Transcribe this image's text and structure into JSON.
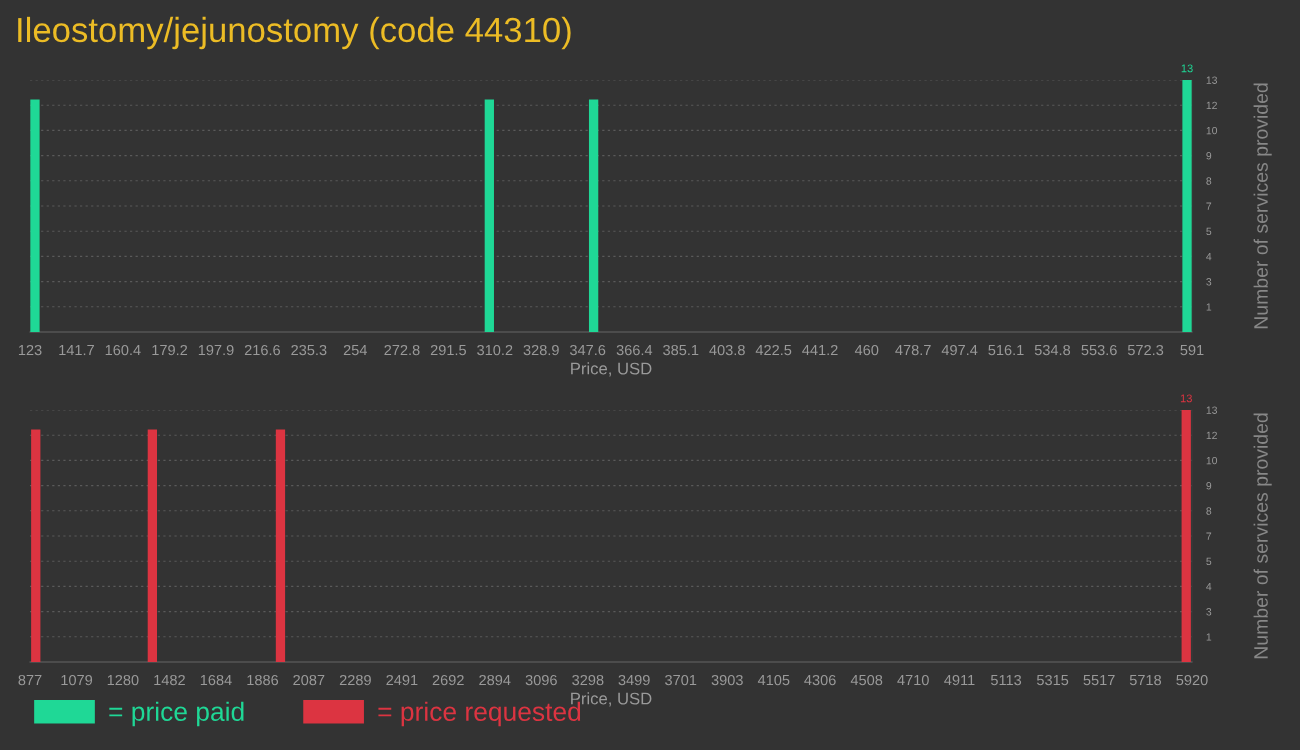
{
  "chart_data": [
    {
      "type": "bar",
      "title": "Ileostomy/jejunostomy (code 44310)",
      "xlabel": "Price, USD",
      "ylabel": "Number of services provided",
      "x": [
        125,
        308,
        350,
        589
      ],
      "series": [
        {
          "name": "= price paid",
          "color": "#1fd896",
          "values": [
            12,
            12,
            12,
            13
          ],
          "value_labels": [
            null,
            null,
            null,
            "13"
          ]
        }
      ],
      "xlim": [
        123,
        591
      ],
      "xticks": [
        123,
        141.7,
        160.4,
        179.2,
        197.9,
        216.6,
        235.3,
        254,
        272.8,
        291.5,
        310.2,
        328.9,
        347.6,
        366.4,
        385.1,
        403.8,
        422.5,
        441.2,
        460,
        478.7,
        497.4,
        516.1,
        534.8,
        553.6,
        572.3,
        591
      ],
      "ylim": [
        0,
        13
      ],
      "yticks": [
        {
          "value": 1.3,
          "label": "1"
        },
        {
          "value": 2.6,
          "label": "3"
        },
        {
          "value": 3.9,
          "label": "4"
        },
        {
          "value": 5.2,
          "label": "5"
        },
        {
          "value": 6.5,
          "label": "7"
        },
        {
          "value": 7.8,
          "label": "8"
        },
        {
          "value": 9.1,
          "label": "9"
        },
        {
          "value": 10.4,
          "label": "10"
        },
        {
          "value": 11.7,
          "label": "12"
        },
        13
      ],
      "grid": "y",
      "legend": "bottom left"
    },
    {
      "type": "bar",
      "xlabel": "Price, USD",
      "ylabel": "Number of services provided",
      "x": [
        902,
        1408,
        1964,
        5895
      ],
      "series": [
        {
          "name": "= price requested",
          "color": "#dc3441",
          "values": [
            12,
            12,
            12,
            13
          ],
          "value_labels": [
            null,
            null,
            null,
            "13"
          ]
        }
      ],
      "xlim": [
        877,
        5920
      ],
      "xticks": [
        877,
        1079,
        1280,
        1482,
        1684,
        1886,
        2087,
        2289,
        2491,
        2692,
        2894,
        3096,
        3298,
        3499,
        3701,
        3903,
        4105,
        4306,
        4508,
        4710,
        4911,
        5113,
        5315,
        5517,
        5718,
        5920
      ],
      "ylim": [
        0,
        13
      ],
      "yticks": [
        {
          "value": 1.3,
          "label": "1"
        },
        {
          "value": 2.6,
          "label": "3"
        },
        {
          "value": 3.9,
          "label": "4"
        },
        {
          "value": 5.2,
          "label": "5"
        },
        {
          "value": 6.5,
          "label": "7"
        },
        {
          "value": 7.8,
          "label": "8"
        },
        {
          "value": 9.1,
          "label": "9"
        },
        {
          "value": 10.4,
          "label": "10"
        },
        {
          "value": 11.7,
          "label": "12"
        },
        13
      ],
      "grid": "y",
      "legend": "bottom left"
    }
  ]
}
